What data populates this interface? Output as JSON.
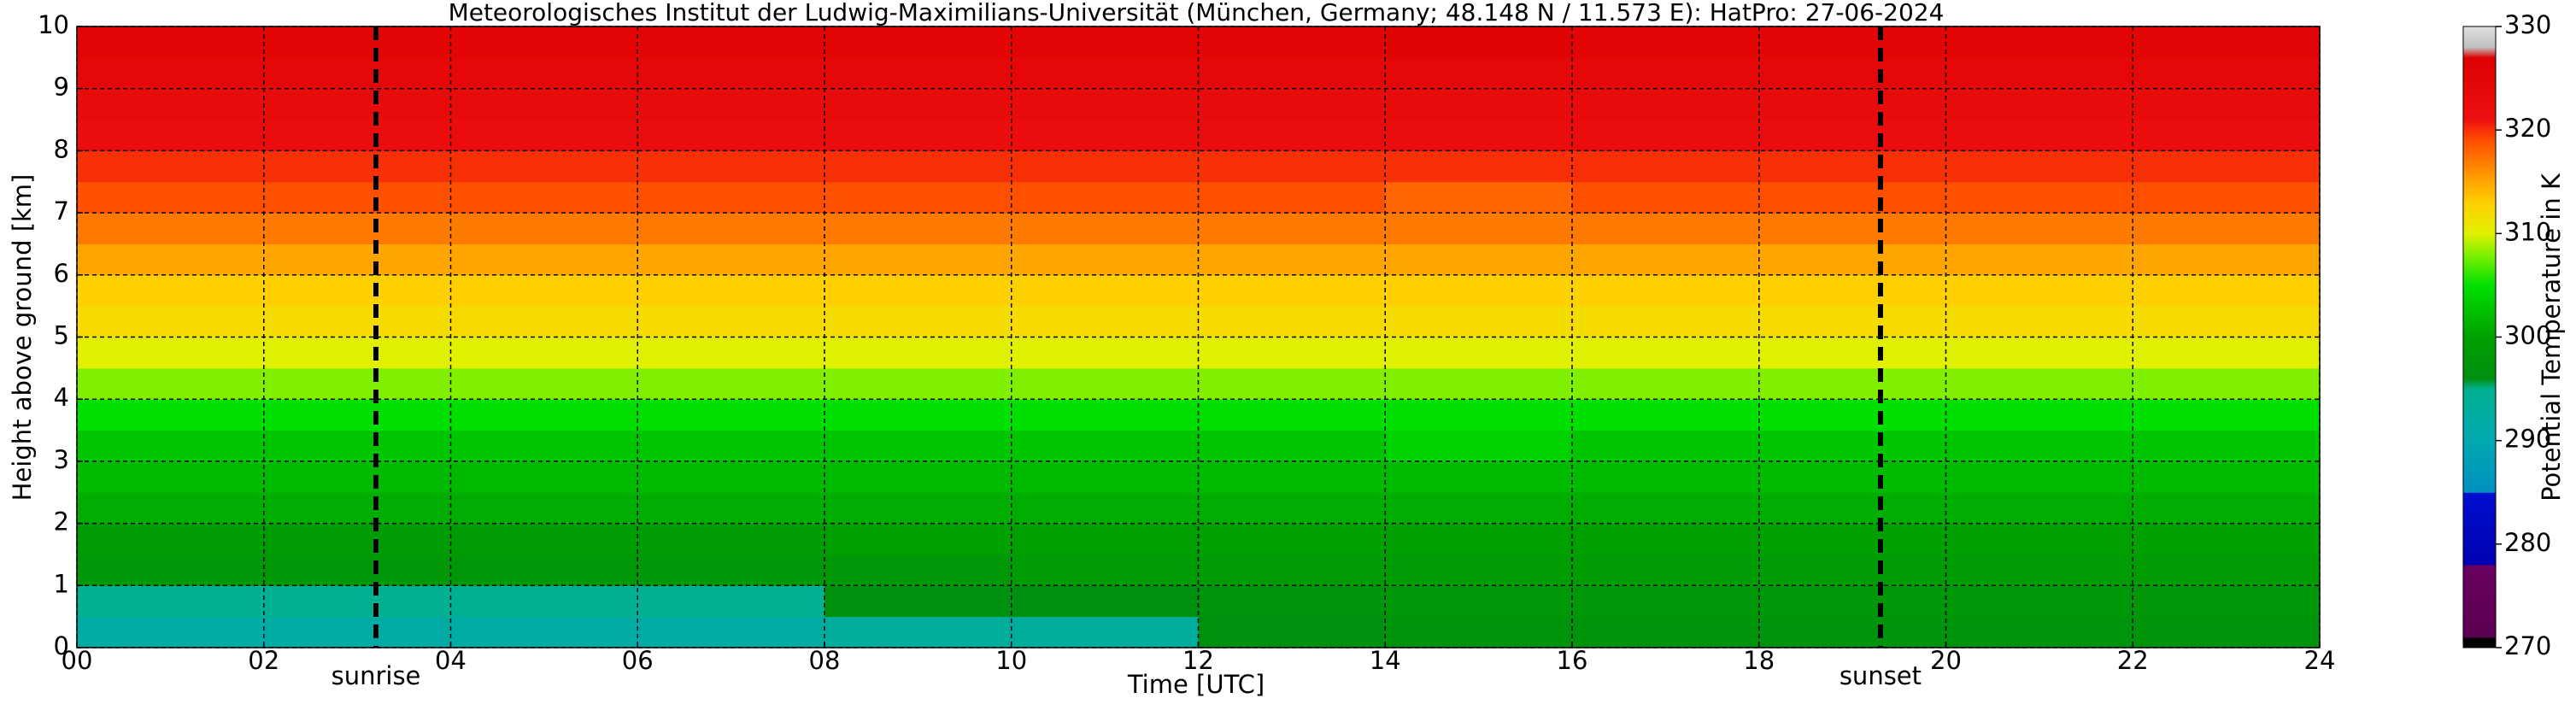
{
  "chart_data": {
    "type": "heatmap",
    "title": "Meteorologisches Institut der Ludwig-Maximilians-Universität (München, Germany; 48.148 N / 11.573 E):    HatPro: 27-06-2024",
    "x_label": "Time [UTC]",
    "y_label": "Height above ground [km]",
    "colorbar_label": "Potential Temperature in K",
    "xlim": [
      0,
      24
    ],
    "ylim": [
      0,
      10
    ],
    "clim": [
      270,
      330
    ],
    "xticks": [
      {
        "value": 0,
        "label": "00"
      },
      {
        "value": 2,
        "label": "02"
      },
      {
        "value": 4,
        "label": "04"
      },
      {
        "value": 6,
        "label": "06"
      },
      {
        "value": 8,
        "label": "08"
      },
      {
        "value": 10,
        "label": "10"
      },
      {
        "value": 12,
        "label": "12"
      },
      {
        "value": 14,
        "label": "14"
      },
      {
        "value": 16,
        "label": "16"
      },
      {
        "value": 18,
        "label": "18"
      },
      {
        "value": 20,
        "label": "20"
      },
      {
        "value": 22,
        "label": "22"
      },
      {
        "value": 24,
        "label": "24"
      }
    ],
    "yticks": [
      0,
      1,
      2,
      3,
      4,
      5,
      6,
      7,
      8,
      9,
      10
    ],
    "cticks": [
      270,
      280,
      290,
      300,
      310,
      320,
      330
    ],
    "grid": true,
    "xbins": [
      0,
      2,
      4,
      6,
      8,
      10,
      12,
      14,
      16,
      18,
      20,
      22,
      24
    ],
    "ybins": [
      0,
      0.5,
      1,
      1.5,
      2,
      2.5,
      3,
      3.5,
      4,
      4.5,
      5,
      5.5,
      6,
      6.5,
      7,
      7.5,
      8,
      8.5,
      9,
      9.5,
      10
    ],
    "values": [
      [
        292,
        292,
        292,
        292,
        293,
        293,
        296,
        297,
        297,
        297,
        297,
        297
      ],
      [
        295,
        295,
        295,
        295,
        296,
        296,
        297,
        298,
        298,
        298,
        298,
        298
      ],
      [
        298,
        298,
        298,
        298,
        298,
        299,
        299,
        299,
        299,
        299,
        299,
        299
      ],
      [
        299,
        299,
        299,
        299,
        300,
        300,
        300,
        300,
        300,
        300,
        300,
        300
      ],
      [
        301,
        301,
        301,
        301,
        301,
        301,
        301,
        301,
        301,
        301,
        301,
        301
      ],
      [
        302,
        302,
        302,
        302,
        302,
        302,
        302,
        302,
        302,
        302,
        302,
        302
      ],
      [
        303,
        303,
        303,
        303,
        303,
        303,
        303,
        304,
        303,
        303,
        303,
        303
      ],
      [
        305,
        305,
        305,
        305,
        305,
        305,
        305,
        305,
        305,
        305,
        305,
        305
      ],
      [
        308,
        308,
        308,
        308,
        308,
        308,
        308,
        308,
        308,
        308,
        308,
        308
      ],
      [
        310,
        310,
        310,
        310,
        310,
        310,
        310,
        310,
        310,
        310,
        310,
        310
      ],
      [
        312,
        312,
        312,
        312,
        312,
        312,
        312,
        312,
        312,
        312,
        312,
        312
      ],
      [
        313,
        313,
        313,
        313,
        313,
        313,
        313,
        313,
        313,
        313,
        313,
        313
      ],
      [
        315,
        315,
        315,
        315,
        315,
        315,
        315,
        315,
        315,
        315,
        315,
        315
      ],
      [
        317,
        317,
        317,
        317,
        317,
        317,
        317,
        317,
        317,
        317,
        317,
        317
      ],
      [
        319,
        319,
        319,
        319,
        319,
        319,
        319,
        318,
        319,
        319,
        319,
        319
      ],
      [
        320,
        320,
        320,
        320,
        320,
        320,
        320,
        320,
        320,
        320,
        320,
        320
      ],
      [
        322,
        322,
        322,
        322,
        322,
        322,
        322,
        322,
        322,
        322,
        322,
        322
      ],
      [
        323,
        323,
        323,
        323,
        323,
        323,
        323,
        323,
        323,
        323,
        323,
        323
      ],
      [
        324,
        324,
        324,
        324,
        324,
        324,
        324,
        324,
        324,
        324,
        324,
        324
      ],
      [
        325,
        325,
        325,
        325,
        325,
        325,
        325,
        326,
        325,
        325,
        325,
        325
      ]
    ],
    "colorscale": [
      [
        270,
        "#000000"
      ],
      [
        271,
        "#000000"
      ],
      [
        271,
        "#5a0050"
      ],
      [
        278,
        "#6a0060"
      ],
      [
        278,
        "#0000b0"
      ],
      [
        285,
        "#0010d0"
      ],
      [
        285,
        "#0090c0"
      ],
      [
        290,
        "#00a8b0"
      ],
      [
        295,
        "#00b090"
      ],
      [
        296,
        "#009010"
      ],
      [
        300,
        "#00a000"
      ],
      [
        305,
        "#00e000"
      ],
      [
        308,
        "#80f000"
      ],
      [
        310,
        "#e0f000"
      ],
      [
        313,
        "#ffd000"
      ],
      [
        316,
        "#ff9000"
      ],
      [
        319,
        "#ff5000"
      ],
      [
        321,
        "#ee1010"
      ],
      [
        327,
        "#dd0000"
      ],
      [
        328,
        "#c0c0c0"
      ],
      [
        330,
        "#e0e0e0"
      ]
    ],
    "annotations": [
      {
        "text": "sunrise",
        "x": 3.2
      },
      {
        "text": "sunset",
        "x": 19.3
      }
    ]
  }
}
